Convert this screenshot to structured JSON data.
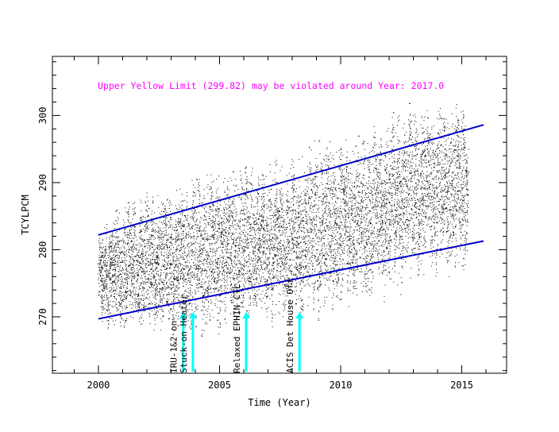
{
  "chart_data": {
    "type": "scatter",
    "title": "",
    "xlabel": "Time (Year)",
    "ylabel": "TCYLPCM",
    "xlim": [
      1998.1,
      2016.85
    ],
    "ylim": [
      261.6,
      308.8
    ],
    "xticks": [
      2000,
      2005,
      2010,
      2015
    ],
    "yticks": [
      270,
      280,
      290,
      300
    ],
    "grid": false,
    "warning_text": "Upper Yellow  Limit (299.82) may be violated around Year: 2017.0",
    "trend_lines": [
      {
        "x": [
          2000.0,
          2015.9
        ],
        "y": [
          282.2,
          298.6
        ]
      },
      {
        "x": [
          2000.0,
          2015.9
        ],
        "y": [
          269.7,
          281.3
        ]
      }
    ],
    "scatter_summary": [
      {
        "x": 2000.0,
        "low": 270,
        "high": 283,
        "mean": 276
      },
      {
        "x": 2001.0,
        "low": 268,
        "high": 287,
        "mean": 277
      },
      {
        "x": 2002.0,
        "low": 268,
        "high": 288,
        "mean": 278
      },
      {
        "x": 2003.0,
        "low": 268,
        "high": 289,
        "mean": 278
      },
      {
        "x": 2004.0,
        "low": 268,
        "high": 291,
        "mean": 279
      },
      {
        "x": 2005.0,
        "low": 269,
        "high": 292,
        "mean": 280
      },
      {
        "x": 2006.0,
        "low": 270,
        "high": 292,
        "mean": 281
      },
      {
        "x": 2007.0,
        "low": 270,
        "high": 293,
        "mean": 281
      },
      {
        "x": 2008.0,
        "low": 270,
        "high": 293,
        "mean": 281
      },
      {
        "x": 2009.0,
        "low": 271,
        "high": 297,
        "mean": 283
      },
      {
        "x": 2010.0,
        "low": 272,
        "high": 296,
        "mean": 284
      },
      {
        "x": 2011.0,
        "low": 273,
        "high": 296,
        "mean": 285
      },
      {
        "x": 2012.0,
        "low": 274,
        "high": 300,
        "mean": 287
      },
      {
        "x": 2013.0,
        "low": 275,
        "high": 301,
        "mean": 289
      },
      {
        "x": 2014.0,
        "low": 276,
        "high": 300,
        "mean": 289
      },
      {
        "x": 2015.0,
        "low": 277,
        "high": 301,
        "mean": 290
      }
    ],
    "annotations": [
      {
        "label": "IRU-1&2 on",
        "x": 2003.5
      },
      {
        "label": "Stuck-on Heater",
        "x": 2003.9
      },
      {
        "label": "Relaxed EPHIN CTL",
        "x": 2006.1
      },
      {
        "label": "ACIS Det House Off",
        "x": 2008.3
      }
    ],
    "colors": {
      "points": "#000000",
      "trend": "#0000cc",
      "warning": "#ff00ff",
      "arrows": "#00ffff",
      "axes": "#000000"
    }
  }
}
